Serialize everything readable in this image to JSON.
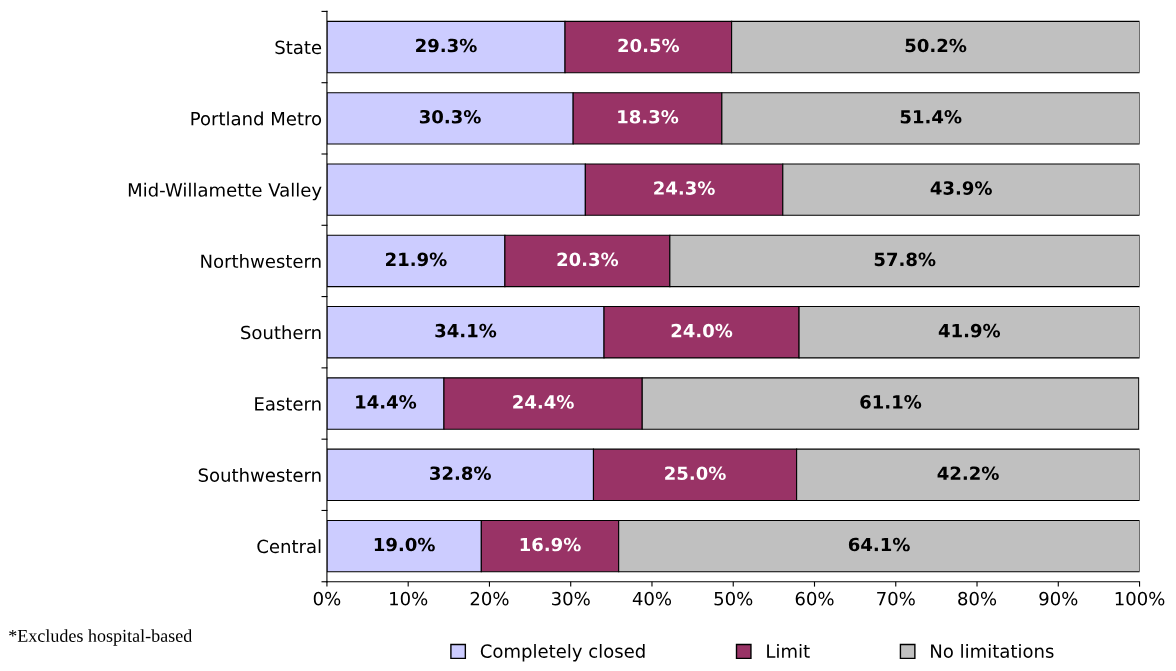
{
  "chart_data": {
    "type": "bar",
    "orientation": "horizontal",
    "stacked": true,
    "categories": [
      "State",
      "Portland Metro",
      "Mid-Willamette Valley",
      "Northwestern",
      "Southern",
      "Eastern",
      "Southwestern",
      "Central"
    ],
    "series": [
      {
        "name": "Completely closed",
        "color": "#ccccff",
        "values": [
          29.3,
          30.3,
          31.8,
          21.9,
          34.1,
          14.4,
          32.8,
          19.0
        ],
        "value_labels": [
          "29.3%",
          "30.3%",
          null,
          "21.9%",
          "34.1%",
          "14.4%",
          "32.8%",
          "19.0%"
        ]
      },
      {
        "name": "Limit",
        "color": "#993366",
        "values": [
          20.5,
          18.3,
          24.3,
          20.3,
          24.0,
          24.4,
          25.0,
          16.9
        ],
        "value_labels": [
          "20.5%",
          "18.3%",
          "24.3%",
          "20.3%",
          "24.0%",
          "24.4%",
          "25.0%",
          "16.9%"
        ]
      },
      {
        "name": "No limitations",
        "color": "#c0c0c0",
        "values": [
          50.2,
          51.4,
          43.9,
          57.8,
          41.9,
          61.1,
          42.2,
          64.1
        ],
        "value_labels": [
          "50.2%",
          "51.4%",
          "43.9%",
          "57.8%",
          "41.9%",
          "61.1%",
          "42.2%",
          "64.1%"
        ]
      }
    ],
    "xlim": [
      0,
      100
    ],
    "xticks": [
      {
        "value": 0,
        "label": "0%"
      },
      {
        "value": 10,
        "label": "10%"
      },
      {
        "value": 20,
        "label": "20%"
      },
      {
        "value": 30,
        "label": "30%"
      },
      {
        "value": 40,
        "label": "40%"
      },
      {
        "value": 50,
        "label": "50%"
      },
      {
        "value": 60,
        "label": "60%"
      },
      {
        "value": 70,
        "label": "70%"
      },
      {
        "value": 80,
        "label": "80%"
      },
      {
        "value": 90,
        "label": "90%"
      },
      {
        "value": 100,
        "label": "100%"
      }
    ],
    "grid": false,
    "legend": "bottom",
    "annotations": [
      "*Excludes hospital-based"
    ]
  }
}
